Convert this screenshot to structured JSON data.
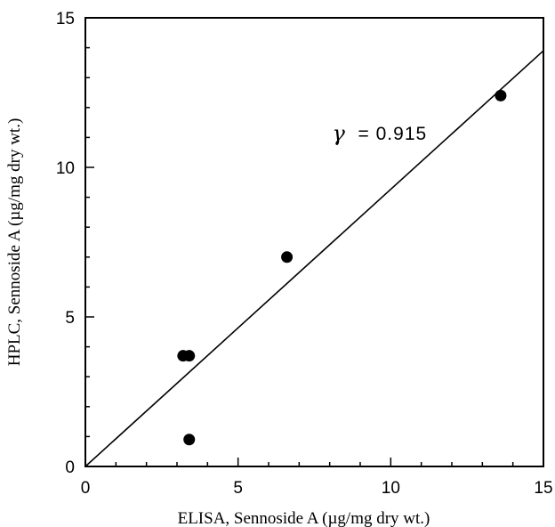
{
  "chart_data": {
    "type": "scatter",
    "xlabel": "ELISA, Sennoside A (µg/mg dry wt.)",
    "ylabel": "HPLC, Sennoside A (µg/mg dry wt.)",
    "xlim": [
      0,
      15
    ],
    "ylim": [
      0,
      15
    ],
    "xticks": [
      0,
      5,
      10,
      15
    ],
    "yticks": [
      0,
      5,
      10,
      15
    ],
    "x_tick_labels": [
      "0",
      "5",
      "10",
      "15"
    ],
    "y_tick_labels": [
      "0",
      "5",
      "10",
      "15"
    ],
    "grid": false,
    "points": [
      {
        "x": 3.2,
        "y": 3.7
      },
      {
        "x": 3.4,
        "y": 3.7
      },
      {
        "x": 3.4,
        "y": 0.9
      },
      {
        "x": 6.6,
        "y": 7.0
      },
      {
        "x": 13.6,
        "y": 12.4
      }
    ],
    "fit_line": {
      "x": [
        0,
        15
      ],
      "y": [
        0,
        13.9
      ]
    },
    "annotation": {
      "symbol": "γ",
      "text": "= 0.915",
      "x": 8.2,
      "y": 10.9
    }
  }
}
